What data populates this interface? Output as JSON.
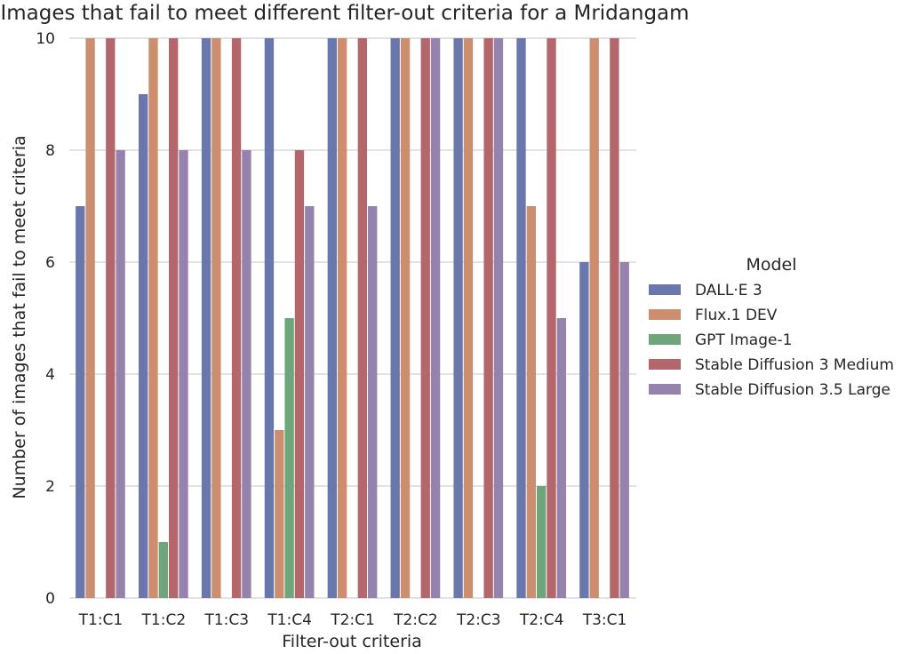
{
  "chart_data": {
    "type": "bar",
    "title": "Images that fail to meet different filter-out criteria for a Mridangam",
    "xlabel": "Filter-out criteria",
    "ylabel": "Number of images that fail to meet criteria",
    "categories": [
      "T1:C1",
      "T1:C2",
      "T1:C3",
      "T1:C4",
      "T2:C1",
      "T2:C2",
      "T2:C3",
      "T2:C4",
      "T3:C1"
    ],
    "ylim": [
      0,
      10
    ],
    "yticks": [
      0,
      2,
      4,
      6,
      8,
      10
    ],
    "grid": "horizontal",
    "legend": {
      "title": "Model",
      "placement": "right"
    },
    "series": [
      {
        "name": "DALL·E 3",
        "color": "#6a77ad",
        "values": [
          7,
          9,
          10,
          10,
          10,
          10,
          10,
          10,
          6
        ]
      },
      {
        "name": "Flux.1 DEV",
        "color": "#cc8e6e",
        "values": [
          10,
          10,
          10,
          3,
          10,
          10,
          10,
          7,
          10
        ]
      },
      {
        "name": "GPT Image-1",
        "color": "#6fa57a",
        "values": [
          0,
          1,
          0,
          5,
          0,
          0,
          0,
          2,
          0
        ]
      },
      {
        "name": "Stable Diffusion 3 Medium",
        "color": "#b3676b",
        "values": [
          10,
          10,
          10,
          8,
          10,
          10,
          10,
          10,
          10
        ]
      },
      {
        "name": "Stable Diffusion 3.5 Large",
        "color": "#9683ad",
        "values": [
          8,
          8,
          8,
          7,
          7,
          10,
          10,
          5,
          6
        ]
      }
    ]
  }
}
